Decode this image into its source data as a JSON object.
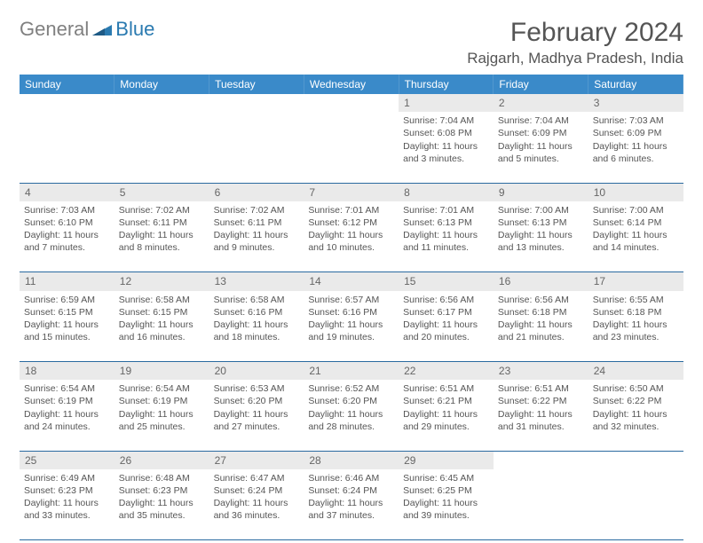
{
  "logo": {
    "text1": "General",
    "text2": "Blue"
  },
  "header": {
    "month": "February 2024",
    "location": "Rajgarh, Madhya Pradesh, India"
  },
  "colors": {
    "header_bg": "#3a8ac9",
    "header_text": "#ffffff",
    "daynum_bg": "#eaeaea",
    "border": "#2a6aa0",
    "text": "#555555"
  },
  "weekdays": [
    "Sunday",
    "Monday",
    "Tuesday",
    "Wednesday",
    "Thursday",
    "Friday",
    "Saturday"
  ],
  "weeks": [
    [
      null,
      null,
      null,
      null,
      {
        "n": "1",
        "sr": "Sunrise: 7:04 AM",
        "ss": "Sunset: 6:08 PM",
        "d1": "Daylight: 11 hours",
        "d2": "and 3 minutes."
      },
      {
        "n": "2",
        "sr": "Sunrise: 7:04 AM",
        "ss": "Sunset: 6:09 PM",
        "d1": "Daylight: 11 hours",
        "d2": "and 5 minutes."
      },
      {
        "n": "3",
        "sr": "Sunrise: 7:03 AM",
        "ss": "Sunset: 6:09 PM",
        "d1": "Daylight: 11 hours",
        "d2": "and 6 minutes."
      }
    ],
    [
      {
        "n": "4",
        "sr": "Sunrise: 7:03 AM",
        "ss": "Sunset: 6:10 PM",
        "d1": "Daylight: 11 hours",
        "d2": "and 7 minutes."
      },
      {
        "n": "5",
        "sr": "Sunrise: 7:02 AM",
        "ss": "Sunset: 6:11 PM",
        "d1": "Daylight: 11 hours",
        "d2": "and 8 minutes."
      },
      {
        "n": "6",
        "sr": "Sunrise: 7:02 AM",
        "ss": "Sunset: 6:11 PM",
        "d1": "Daylight: 11 hours",
        "d2": "and 9 minutes."
      },
      {
        "n": "7",
        "sr": "Sunrise: 7:01 AM",
        "ss": "Sunset: 6:12 PM",
        "d1": "Daylight: 11 hours",
        "d2": "and 10 minutes."
      },
      {
        "n": "8",
        "sr": "Sunrise: 7:01 AM",
        "ss": "Sunset: 6:13 PM",
        "d1": "Daylight: 11 hours",
        "d2": "and 11 minutes."
      },
      {
        "n": "9",
        "sr": "Sunrise: 7:00 AM",
        "ss": "Sunset: 6:13 PM",
        "d1": "Daylight: 11 hours",
        "d2": "and 13 minutes."
      },
      {
        "n": "10",
        "sr": "Sunrise: 7:00 AM",
        "ss": "Sunset: 6:14 PM",
        "d1": "Daylight: 11 hours",
        "d2": "and 14 minutes."
      }
    ],
    [
      {
        "n": "11",
        "sr": "Sunrise: 6:59 AM",
        "ss": "Sunset: 6:15 PM",
        "d1": "Daylight: 11 hours",
        "d2": "and 15 minutes."
      },
      {
        "n": "12",
        "sr": "Sunrise: 6:58 AM",
        "ss": "Sunset: 6:15 PM",
        "d1": "Daylight: 11 hours",
        "d2": "and 16 minutes."
      },
      {
        "n": "13",
        "sr": "Sunrise: 6:58 AM",
        "ss": "Sunset: 6:16 PM",
        "d1": "Daylight: 11 hours",
        "d2": "and 18 minutes."
      },
      {
        "n": "14",
        "sr": "Sunrise: 6:57 AM",
        "ss": "Sunset: 6:16 PM",
        "d1": "Daylight: 11 hours",
        "d2": "and 19 minutes."
      },
      {
        "n": "15",
        "sr": "Sunrise: 6:56 AM",
        "ss": "Sunset: 6:17 PM",
        "d1": "Daylight: 11 hours",
        "d2": "and 20 minutes."
      },
      {
        "n": "16",
        "sr": "Sunrise: 6:56 AM",
        "ss": "Sunset: 6:18 PM",
        "d1": "Daylight: 11 hours",
        "d2": "and 21 minutes."
      },
      {
        "n": "17",
        "sr": "Sunrise: 6:55 AM",
        "ss": "Sunset: 6:18 PM",
        "d1": "Daylight: 11 hours",
        "d2": "and 23 minutes."
      }
    ],
    [
      {
        "n": "18",
        "sr": "Sunrise: 6:54 AM",
        "ss": "Sunset: 6:19 PM",
        "d1": "Daylight: 11 hours",
        "d2": "and 24 minutes."
      },
      {
        "n": "19",
        "sr": "Sunrise: 6:54 AM",
        "ss": "Sunset: 6:19 PM",
        "d1": "Daylight: 11 hours",
        "d2": "and 25 minutes."
      },
      {
        "n": "20",
        "sr": "Sunrise: 6:53 AM",
        "ss": "Sunset: 6:20 PM",
        "d1": "Daylight: 11 hours",
        "d2": "and 27 minutes."
      },
      {
        "n": "21",
        "sr": "Sunrise: 6:52 AM",
        "ss": "Sunset: 6:20 PM",
        "d1": "Daylight: 11 hours",
        "d2": "and 28 minutes."
      },
      {
        "n": "22",
        "sr": "Sunrise: 6:51 AM",
        "ss": "Sunset: 6:21 PM",
        "d1": "Daylight: 11 hours",
        "d2": "and 29 minutes."
      },
      {
        "n": "23",
        "sr": "Sunrise: 6:51 AM",
        "ss": "Sunset: 6:22 PM",
        "d1": "Daylight: 11 hours",
        "d2": "and 31 minutes."
      },
      {
        "n": "24",
        "sr": "Sunrise: 6:50 AM",
        "ss": "Sunset: 6:22 PM",
        "d1": "Daylight: 11 hours",
        "d2": "and 32 minutes."
      }
    ],
    [
      {
        "n": "25",
        "sr": "Sunrise: 6:49 AM",
        "ss": "Sunset: 6:23 PM",
        "d1": "Daylight: 11 hours",
        "d2": "and 33 minutes."
      },
      {
        "n": "26",
        "sr": "Sunrise: 6:48 AM",
        "ss": "Sunset: 6:23 PM",
        "d1": "Daylight: 11 hours",
        "d2": "and 35 minutes."
      },
      {
        "n": "27",
        "sr": "Sunrise: 6:47 AM",
        "ss": "Sunset: 6:24 PM",
        "d1": "Daylight: 11 hours",
        "d2": "and 36 minutes."
      },
      {
        "n": "28",
        "sr": "Sunrise: 6:46 AM",
        "ss": "Sunset: 6:24 PM",
        "d1": "Daylight: 11 hours",
        "d2": "and 37 minutes."
      },
      {
        "n": "29",
        "sr": "Sunrise: 6:45 AM",
        "ss": "Sunset: 6:25 PM",
        "d1": "Daylight: 11 hours",
        "d2": "and 39 minutes."
      },
      null,
      null
    ]
  ]
}
